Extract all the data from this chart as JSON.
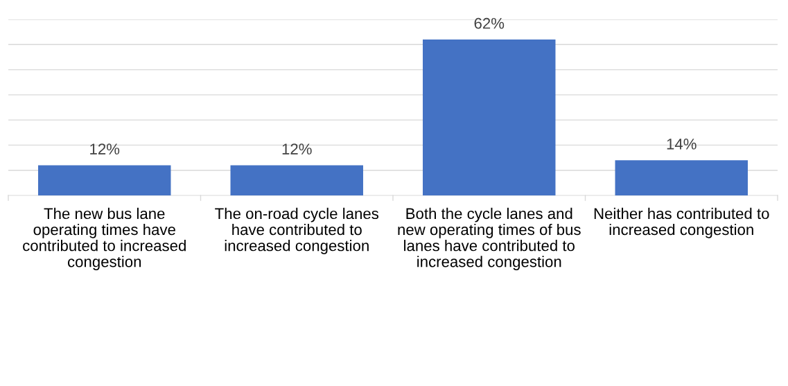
{
  "chart_data": {
    "type": "bar",
    "categories": [
      "The new bus lane operating times have contributed to increased congestion",
      "The on-road cycle lanes have contributed to increased congestion",
      "Both the cycle lanes and new operating times of bus lanes have contributed to increased congestion",
      "Neither has contributed to increased congestion"
    ],
    "values": [
      12,
      12,
      62,
      14
    ],
    "color": "#4472c4",
    "value_labels": [
      "12%",
      "12%",
      "62%",
      "14%"
    ],
    "ylim": [
      0,
      70
    ],
    "yticks": [
      {
        "value": 10,
        "label": null
      },
      {
        "value": 20,
        "label": null
      },
      {
        "value": 30,
        "label": null
      },
      {
        "value": 40,
        "label": null
      },
      {
        "value": 50,
        "label": null
      },
      {
        "value": 60,
        "label": null
      },
      {
        "value": 70,
        "label": null
      }
    ],
    "grid": "y",
    "tick_labels": "x"
  }
}
